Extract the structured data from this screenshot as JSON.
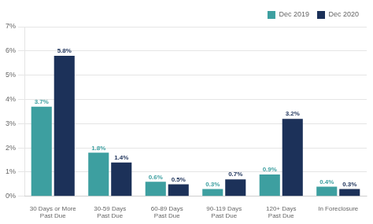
{
  "chart_data": {
    "type": "bar",
    "categories": [
      "30 Days or More\nPast Due",
      "30-59 Days\nPast Due",
      "60-89 Days\nPast Due",
      "90-119 Days\nPast Due",
      "120+ Days\nPast Due",
      "In Foreclosure"
    ],
    "series": [
      {
        "name": "Dec 2019",
        "color": "#3d9fa0",
        "values": [
          3.7,
          1.8,
          0.6,
          0.3,
          0.9,
          0.4
        ],
        "value_labels": [
          "3.7%",
          "1.8%",
          "0.6%",
          "0.3%",
          "0.9%",
          "0.4%"
        ]
      },
      {
        "name": "Dec 2020",
        "color": "#1c3159",
        "values": [
          5.8,
          1.4,
          0.5,
          0.7,
          3.2,
          0.3
        ],
        "value_labels": [
          "5.8%",
          "1.4%",
          "0.5%",
          "0.7%",
          "3.2%",
          "0.3%"
        ]
      }
    ],
    "ylim": [
      0,
      7
    ],
    "yticks": [
      {
        "value": 0,
        "label": "0%"
      },
      {
        "value": 1,
        "label": "1%"
      },
      {
        "value": 2,
        "label": "2%"
      },
      {
        "value": 3,
        "label": "3%"
      },
      {
        "value": 4,
        "label": "4%"
      },
      {
        "value": 5,
        "label": "5%"
      },
      {
        "value": 6,
        "label": "6%"
      },
      {
        "value": 7,
        "label": "7%"
      }
    ],
    "grid": true,
    "legend": "upper right",
    "data_labels": true
  }
}
